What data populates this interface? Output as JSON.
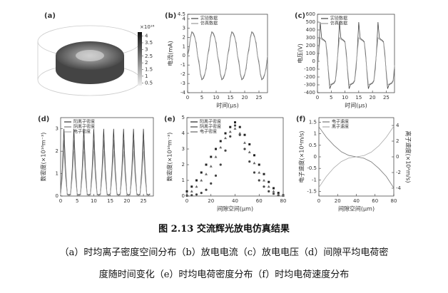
{
  "figure_a": {
    "panel_label": "(a)",
    "colorbar_label": "×10¹⁶",
    "colorbar_ticks": [
      4,
      3.5,
      3,
      2.5,
      2,
      1.5,
      1,
      0.5
    ],
    "colorbar_range": [
      0.3,
      4.3
    ]
  },
  "chart_data": [
    {
      "type": "line",
      "panel_label": "(b)",
      "ylabel": "电流(mA)",
      "xlabel": "时间(μs)",
      "xlim": [
        0,
        28
      ],
      "xticks": [
        0,
        5,
        10,
        15,
        20,
        25
      ],
      "ylim": [
        -4,
        4.5
      ],
      "yticks": [
        -4,
        -3,
        -2,
        -1,
        0,
        1,
        2,
        3,
        4,
        4.5
      ],
      "x": [
        0,
        0.5,
        1,
        1.5,
        2,
        2.5,
        3,
        3.5,
        4,
        4.5,
        5,
        5.5,
        6,
        6.5,
        7,
        7.5,
        8,
        8.5,
        9,
        9.5,
        10,
        10.5,
        11,
        11.5,
        12,
        12.5,
        13,
        13.5,
        14,
        14.5,
        15,
        15.5,
        16,
        16.5,
        17,
        17.5,
        18,
        18.5,
        19,
        19.5,
        20,
        20.5,
        21,
        21.5,
        22,
        22.5,
        23,
        23.5,
        24,
        24.5,
        25,
        25.5,
        26,
        26.5,
        27,
        27.5,
        28
      ],
      "series": [
        {
          "name": "实验数据",
          "color": "#444",
          "values": [
            0,
            0.8,
            2.0,
            2.6,
            2.4,
            2.0,
            1.4,
            0,
            -0.8,
            -2.0,
            -2.6,
            -2.4,
            -2.0,
            -1.4,
            0,
            0.8,
            2.0,
            2.6,
            2.4,
            2.0,
            1.4,
            0,
            -0.8,
            -2.0,
            -2.6,
            -2.4,
            -2.0,
            -1.4,
            0,
            0.8,
            2.0,
            2.6,
            2.4,
            2.0,
            1.4,
            0,
            -0.8,
            -2.0,
            -2.6,
            -2.4,
            -2.0,
            -1.4,
            0,
            0.8,
            2.0,
            2.6,
            2.4,
            2.0,
            1.4,
            0,
            -0.8,
            -2.0,
            -2.6,
            -2.4,
            -2.0,
            -1.4,
            0
          ]
        },
        {
          "name": "仿真数据",
          "color": "#999",
          "values": [
            0,
            0.6,
            1.9,
            2.5,
            2.5,
            2.1,
            1.2,
            0,
            -0.6,
            -1.9,
            -2.5,
            -2.5,
            -2.1,
            -1.2,
            0,
            0.6,
            1.9,
            2.5,
            2.5,
            2.1,
            1.2,
            0,
            -0.6,
            -1.9,
            -2.5,
            -2.5,
            -2.1,
            -1.2,
            0,
            0.6,
            1.9,
            2.5,
            2.5,
            2.1,
            1.2,
            0,
            -0.6,
            -1.9,
            -2.5,
            -2.5,
            -2.1,
            -1.2,
            0,
            0.6,
            1.9,
            2.5,
            2.5,
            2.1,
            1.2,
            0,
            -0.6,
            -1.9,
            -2.5,
            -2.5,
            -2.1,
            -1.2,
            0
          ]
        }
      ]
    },
    {
      "type": "line",
      "panel_label": "(c)",
      "ylabel": "电压(V)",
      "xlabel": "时间(μs)",
      "xlim": [
        0,
        28
      ],
      "xticks": [
        0,
        5,
        10,
        15,
        20,
        25
      ],
      "ylim": [
        -400,
        600
      ],
      "yticks": [
        -400,
        -300,
        -200,
        -100,
        0,
        100,
        200,
        300,
        400,
        500,
        600
      ],
      "x": [
        0,
        0.5,
        1,
        1.5,
        2,
        2.5,
        3,
        3.5,
        4,
        4.5,
        5,
        5.5,
        6,
        6.5,
        7,
        7.5,
        8,
        8.5,
        9,
        9.5,
        10,
        10.5,
        11,
        11.5,
        12,
        12.5,
        13,
        13.5,
        14,
        14.5,
        15,
        15.5,
        16,
        16.5,
        17,
        17.5,
        18,
        18.5,
        19,
        19.5,
        20,
        20.5,
        21,
        21.5,
        22,
        22.5,
        23,
        23.5,
        24,
        24.5,
        25,
        25.5,
        26,
        26.5,
        27,
        27.5,
        28
      ],
      "series": [
        {
          "name": "实验数据",
          "color": "#444",
          "values": [
            -100,
            150,
            500,
            300,
            280,
            270,
            250,
            100,
            -150,
            -350,
            -300,
            -290,
            -280,
            -250,
            -100,
            150,
            500,
            300,
            280,
            270,
            250,
            100,
            -150,
            -350,
            -300,
            -290,
            -280,
            -250,
            -100,
            150,
            500,
            300,
            280,
            270,
            250,
            100,
            -150,
            -350,
            -300,
            -290,
            -280,
            -250,
            -100,
            150,
            500,
            300,
            280,
            270,
            250,
            100,
            -150,
            -350,
            -300,
            -290,
            -280,
            -250,
            -100
          ]
        },
        {
          "name": "仿真数据",
          "color": "#999",
          "values": [
            -50,
            120,
            300,
            280,
            270,
            260,
            240,
            60,
            -120,
            -300,
            -290,
            -280,
            -270,
            -240,
            -50,
            120,
            300,
            280,
            270,
            260,
            240,
            60,
            -120,
            -300,
            -290,
            -280,
            -270,
            -240,
            -50,
            120,
            300,
            280,
            270,
            260,
            240,
            60,
            -120,
            -300,
            -290,
            -280,
            -270,
            -240,
            -50,
            120,
            300,
            280,
            270,
            260,
            240,
            60,
            -120,
            -300,
            -290,
            -280,
            -270,
            -240,
            -50
          ]
        }
      ]
    },
    {
      "type": "line",
      "panel_label": "(d)",
      "ylabel": "数密度(×10¹⁶m⁻³)",
      "xlim": [
        0,
        28
      ],
      "xticks": [
        0,
        5,
        10,
        15,
        20,
        25
      ],
      "ylim": [
        0,
        3.5
      ],
      "yticks": [
        0,
        1,
        2,
        3
      ],
      "x": [
        0,
        0.5,
        1,
        1.5,
        2,
        2.5,
        3,
        3.5,
        4,
        4.5,
        5,
        5.5,
        6,
        6.5,
        7,
        7.5,
        8,
        8.5,
        9,
        9.5,
        10,
        10.5,
        11,
        11.5,
        12,
        12.5,
        13,
        13.5,
        14,
        14.5,
        15,
        15.5,
        16,
        16.5,
        17,
        17.5,
        18,
        18.5,
        19,
        19.5,
        20,
        20.5,
        21,
        21.5,
        22,
        22.5,
        23,
        23.5,
        24,
        24.5,
        25,
        25.5,
        26,
        26.5,
        27
      ],
      "series": [
        {
          "name": "阳离子密度",
          "color": "#333",
          "values": [
            0.1,
            1.2,
            3.0,
            1.2,
            0.1,
            0.05,
            0.1,
            1.2,
            3.0,
            1.2,
            0.1,
            0.05,
            0.1,
            1.2,
            3.0,
            1.2,
            0.1,
            0.05,
            0.1,
            1.2,
            3.0,
            1.2,
            0.1,
            0.05,
            0.1,
            1.2,
            3.0,
            1.2,
            0.1,
            0.05,
            0.1,
            1.2,
            3.0,
            1.2,
            0.1,
            0.05,
            0.1,
            1.2,
            3.0,
            1.2,
            0.1,
            0.05,
            0.1,
            1.2,
            3.0,
            1.2,
            0.1,
            0.05,
            0.1,
            1.2,
            3.0,
            1.2,
            0.1,
            0.05,
            0.1
          ]
        },
        {
          "name": "阴离子密度",
          "color": "#777",
          "values": [
            0.05,
            1.0,
            2.5,
            1.0,
            0.05,
            0.02,
            0.05,
            1.0,
            2.5,
            1.0,
            0.05,
            0.02,
            0.05,
            1.0,
            2.5,
            1.0,
            0.05,
            0.02,
            0.05,
            1.0,
            2.5,
            1.0,
            0.05,
            0.02,
            0.05,
            1.0,
            2.5,
            1.0,
            0.05,
            0.02,
            0.05,
            1.0,
            2.5,
            1.0,
            0.05,
            0.02,
            0.05,
            1.0,
            2.5,
            1.0,
            0.05,
            0.02,
            0.05,
            1.0,
            2.5,
            1.0,
            0.05,
            0.02,
            0.05,
            1.0,
            2.5,
            1.0,
            0.05,
            0.02,
            0.05
          ]
        },
        {
          "name": "电子密度",
          "color": "#aaa",
          "values": [
            0.05,
            0.8,
            2.0,
            0.8,
            0.05,
            0.02,
            0.05,
            0.8,
            2.0,
            0.8,
            0.05,
            0.02,
            0.05,
            0.8,
            2.0,
            0.8,
            0.05,
            0.02,
            0.05,
            0.8,
            2.0,
            0.8,
            0.05,
            0.02,
            0.05,
            0.8,
            2.0,
            0.8,
            0.05,
            0.02,
            0.05,
            0.8,
            2.0,
            0.8,
            0.05,
            0.02,
            0.05,
            0.8,
            2.0,
            0.8,
            0.05,
            0.02,
            0.05,
            0.8,
            2.0,
            0.8,
            0.05,
            0.02,
            0.05,
            0.8,
            2.0,
            0.8,
            0.05,
            0.02,
            0.05
          ]
        }
      ]
    },
    {
      "type": "line",
      "panel_label": "(e)",
      "ylabel": "数密度(×10¹⁶m⁻³)",
      "xlabel": "间隙空间(μm)",
      "xlim": [
        0,
        80
      ],
      "xticks": [
        0,
        20,
        40,
        60,
        80
      ],
      "ylim": [
        0,
        5
      ],
      "yticks": [
        0,
        1,
        2,
        3,
        4,
        5
      ],
      "x": [
        0,
        4,
        8,
        12,
        16,
        20,
        24,
        28,
        32,
        36,
        40,
        44,
        48,
        52,
        56,
        60,
        64,
        68,
        72,
        76,
        80
      ],
      "series": [
        {
          "name": "阳离子密度",
          "color": "#222",
          "marker": "square",
          "values": [
            0.3,
            0.6,
            1.0,
            1.5,
            2.0,
            2.5,
            3.0,
            3.5,
            4.0,
            4.4,
            4.7,
            4.4,
            3.9,
            3.3,
            2.6,
            2.0,
            1.4,
            0.9,
            0.5,
            0.2,
            0.05
          ]
        },
        {
          "name": "阴离子密度",
          "color": "#444",
          "marker": "circle",
          "values": [
            0.02,
            0.05,
            0.1,
            0.2,
            0.4,
            0.8,
            1.3,
            2.0,
            2.9,
            3.8,
            4.5,
            3.9,
            3.0,
            2.2,
            1.5,
            1.0,
            0.6,
            0.3,
            0.15,
            0.05,
            0.02
          ]
        },
        {
          "name": "电子密度",
          "color": "#666",
          "marker": "triangle",
          "values": [
            0.1,
            0.3,
            0.6,
            1.0,
            1.4,
            1.9,
            2.5,
            3.1,
            3.7,
            4.1,
            4.3,
            4.0,
            3.4,
            2.8,
            2.1,
            1.5,
            1.0,
            0.6,
            0.3,
            0.1,
            0.03
          ]
        }
      ]
    },
    {
      "type": "line",
      "panel_label": "(f)",
      "ylabel": "电子速度(×10⁴m/s)",
      "y2label": "离子速度(×10²m/s)",
      "xlabel": "间隙空间(μm)",
      "xlim": [
        0,
        80
      ],
      "xticks": [
        0,
        20,
        40,
        60,
        80
      ],
      "ylim": [
        -1.7,
        1.7
      ],
      "yticks": [
        -1.5,
        -1,
        -0.5,
        0,
        0.5,
        1,
        1.5
      ],
      "y2lim": [
        -5,
        5
      ],
      "y2ticks": [
        -4,
        -2,
        0,
        2,
        4
      ],
      "x": [
        0,
        8,
        16,
        24,
        32,
        40,
        48,
        56,
        64,
        72,
        80
      ],
      "series": [
        {
          "name": "电子速度",
          "color": "#777",
          "values": [
            1.3,
            0.85,
            0.5,
            0.22,
            0.06,
            0,
            -0.06,
            -0.22,
            -0.5,
            -0.85,
            -1.35
          ]
        },
        {
          "name": "离子速度",
          "color": "#aaa",
          "axis": "y2",
          "values": [
            -3.9,
            -2.5,
            -1.4,
            -0.6,
            -0.15,
            0,
            0.15,
            0.6,
            1.4,
            2.5,
            3.9
          ]
        }
      ]
    }
  ],
  "caption": {
    "title": "图 2.13 交流辉光放电仿真结果",
    "lines": [
      "（a）时均离子密度空间分布（b）放电电流（c）放电电压（d）间隙平均电荷密",
      "度随时间变化（e）时均电荷密度分布（f）时均电荷速度分布"
    ]
  }
}
